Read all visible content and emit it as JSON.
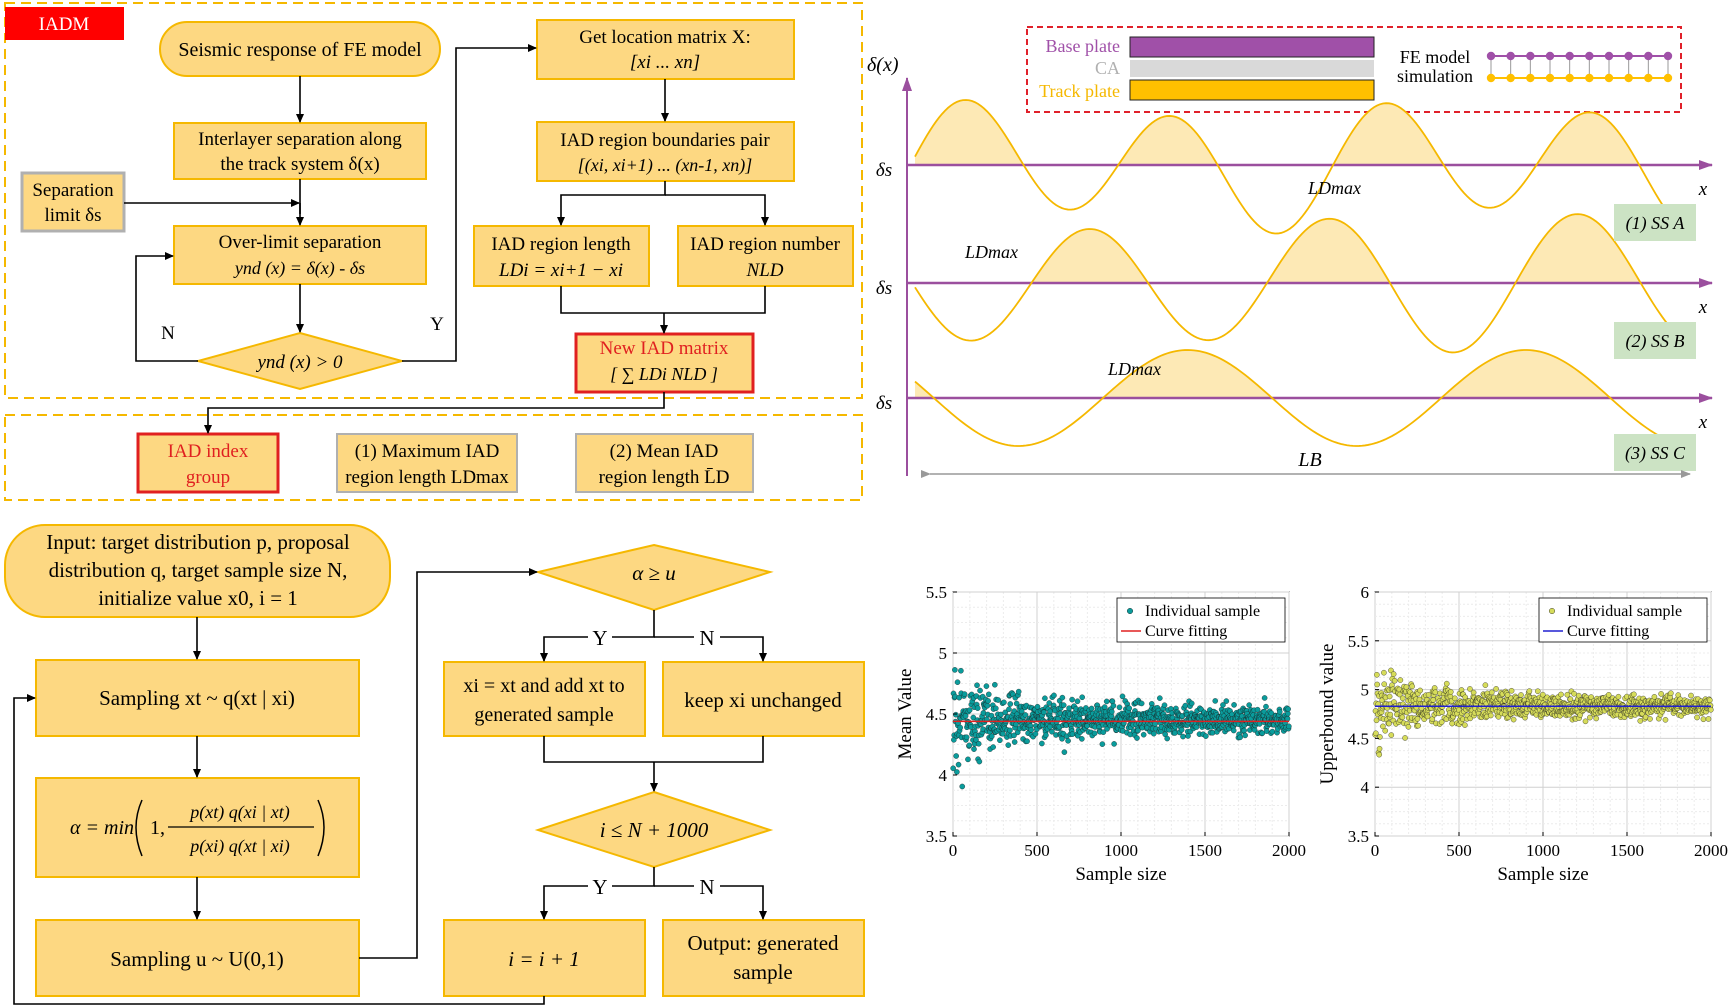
{
  "iadm": {
    "badge": "IADM",
    "seismic": "Seismic response of FE model",
    "separation_l1": "Interlayer separation along",
    "separation_l2": "the track system δ(x)",
    "limit_l1": "Separation",
    "limit_l2": "limit δs",
    "overlimit_l1": "Over-limit separation",
    "overlimit_l2": "ynd (x) = δ(x) - δs",
    "decision": "ynd (x) > 0",
    "label_n": "N",
    "label_y": "Y",
    "location_l1": "Get location matrix X:",
    "location_l2": "[xi ... xn]",
    "boundaries_l1": "IAD region boundaries pair",
    "boundaries_l2": "[(xi, xi+1) ... (xn-1, xn)]",
    "length_l1": "IAD region length",
    "length_l2": "LDi = xi+1 − xi",
    "number_l1": "IAD region number",
    "number_l2": "NLD",
    "new_matrix_l1": "New IAD matrix",
    "new_matrix_l2": "[ ∑ LDi    NLD ]",
    "index_l1": "IAD  index",
    "index_l2": "group",
    "max_l1": "(1) Maximum IAD",
    "max_l2": "region length  LDmax",
    "mean_l1": "(2) Mean IAD",
    "mean_l2": "region length  L̄D"
  },
  "waves": {
    "y_axis_label": "δ(x)",
    "legend": {
      "base_plate": "Base plate",
      "ca": "CA",
      "track_plate": "Track plate",
      "fe_l1": "FE model",
      "fe_l2": "simulation"
    },
    "threshold_label": "δs",
    "x_label": "x",
    "peak_label": "LDmax",
    "span_label": "LB",
    "ss_a": "(1) SS A",
    "ss_b": "(2) SS B",
    "ss_c": "(3) SS C",
    "colors": {
      "axis": "#9b4f9e",
      "curve": "#f5b800",
      "fill": "#fde9b5",
      "base_plate": "#a050a8",
      "ca": "#d9d9d9",
      "track_plate": "#ffc000",
      "legend_border": "#e0202a",
      "badge": "#cce3c4"
    }
  },
  "mcmc": {
    "input_l1": "Input: target distribution p, proposal",
    "input_l2": "distribution q, target sample size N,",
    "input_l3": "initialize value x0, i = 1",
    "sampling1": "Sampling   xt ~ q(xt | xi)",
    "alpha_prefix": "α = min",
    "alpha_one": "1,",
    "alpha_num": "p(xt) q(xi | xt)",
    "alpha_den": "p(xi) q(xt | xi)",
    "sampling2": "Sampling   u ~ U(0,1)",
    "accept_decision": "α ≥ u",
    "accept_l1": "xi = xt and add xt to",
    "accept_l2": "generated sample",
    "keep": "keep xi unchanged",
    "loop_decision": "i ≤ N + 1000",
    "increment": "i = i + 1",
    "output_l1": "Output: generated",
    "output_l2": "sample",
    "label_y": "Y",
    "label_n": "N"
  },
  "chart_data": [
    {
      "type": "scatter",
      "title": "",
      "xlabel": "Sample size",
      "ylabel": "Mean Value",
      "xlim": [
        0,
        2000
      ],
      "ylim": [
        3.5,
        5.5
      ],
      "x_ticks": [
        "0",
        "500",
        "1000",
        "1500",
        "2000"
      ],
      "y_ticks": [
        "3.5",
        "4",
        "4.5",
        "5",
        "5.5"
      ],
      "grid": true,
      "legend_position": "top-right",
      "series": [
        {
          "name": "Individual sample",
          "kind": "scatter",
          "color": "#0a9c9c",
          "center": 4.45,
          "spread_start": 0.85,
          "spread_end": 0.06,
          "n_points": 2000
        },
        {
          "name": "Curve fitting",
          "kind": "line",
          "color": "#e02020",
          "x": [
            0,
            2000
          ],
          "y": [
            4.44,
            4.44
          ]
        }
      ]
    },
    {
      "type": "scatter",
      "title": "",
      "xlabel": "Sample size",
      "ylabel": "Upperbound value",
      "xlim": [
        0,
        2000
      ],
      "ylim": [
        3.5,
        6
      ],
      "x_ticks": [
        "0",
        "500",
        "1000",
        "1500",
        "2000"
      ],
      "y_ticks": [
        "3.5",
        "4",
        "4.5",
        "5",
        "5.5",
        "6"
      ],
      "grid": true,
      "legend_position": "top-right",
      "series": [
        {
          "name": "Individual sample",
          "kind": "scatter",
          "color": "#d6dc5a",
          "center": 4.83,
          "spread_start": 0.75,
          "spread_end": 0.06,
          "n_points": 2000
        },
        {
          "name": "Curve fitting",
          "kind": "line",
          "color": "#2020d0",
          "x": [
            0,
            2000
          ],
          "y": [
            4.83,
            4.83
          ]
        }
      ]
    }
  ]
}
